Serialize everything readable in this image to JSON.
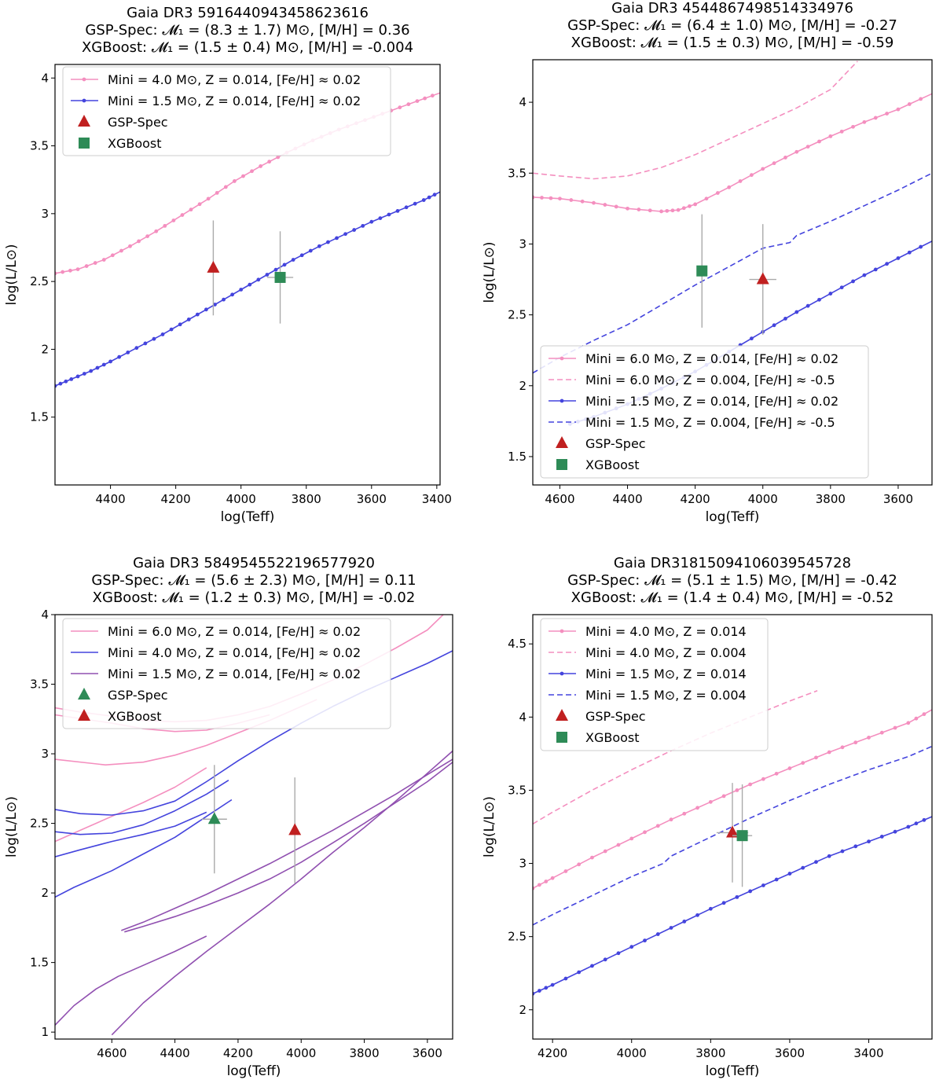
{
  "chart_data": [
    {
      "type": "line",
      "title": [
        "Gaia DR3 5916440943458623616",
        "GSP-Spec: 𝓜₁ = (8.3 ± 1.7) M⊙, [M/H] = 0.36",
        "XGBoost:   𝓜₁ = (1.5 ± 0.4) M⊙, [M/H] = -0.004"
      ],
      "xlabel": "log(Teff)",
      "ylabel": "log(L/L⊙)",
      "xlim": [
        4570,
        3390
      ],
      "ylim": [
        1.0,
        4.1
      ],
      "xticks": [
        4400,
        4200,
        4000,
        3800,
        3600,
        3400
      ],
      "yticks": [
        1.5,
        2.0,
        2.5,
        3.0,
        3.5,
        4.0
      ],
      "legend_location": "top-left",
      "series": [
        {
          "name": "Mini = 4.0 M⊙, Z = 0.014, [Fe/H] ≈ 0.02",
          "style": "solid",
          "color": "#f48fbf",
          "markers": true,
          "x": [
            4570,
            4500,
            4420,
            4340,
            4260,
            4180,
            4100,
            4020,
            3940,
            3860,
            3780,
            3700,
            3620,
            3540,
            3460,
            3390
          ],
          "y": [
            2.56,
            2.59,
            2.66,
            2.76,
            2.87,
            2.99,
            3.11,
            3.24,
            3.35,
            3.45,
            3.54,
            3.62,
            3.69,
            3.76,
            3.83,
            3.89
          ]
        },
        {
          "name": "Mini = 1.5 M⊙, Z = 0.014, [Fe/H] ≈ 0.02",
          "style": "solid",
          "color": "#4444dd",
          "markers": true,
          "x": [
            4570,
            4520,
            4460,
            4400,
            4320,
            4240,
            4160,
            4080,
            4000,
            3920,
            3840,
            3760,
            3680,
            3600,
            3520,
            3440,
            3390
          ],
          "y": [
            1.73,
            1.78,
            1.84,
            1.91,
            2.01,
            2.11,
            2.22,
            2.33,
            2.44,
            2.55,
            2.66,
            2.76,
            2.85,
            2.94,
            3.02,
            3.1,
            3.16
          ]
        }
      ],
      "points": [
        {
          "name": "GSP-Spec",
          "marker": "triangle",
          "color": "#c02020",
          "x": 4085,
          "y": 2.6,
          "xerr": 0,
          "yerr": 0.35
        },
        {
          "name": "XGBoost",
          "marker": "square",
          "color": "#2e8b57",
          "x": 3880,
          "y": 2.53,
          "xerr": 40,
          "yerr": 0.34
        }
      ]
    },
    {
      "type": "line",
      "title": [
        "Gaia DR3 4544867498514334976",
        "GSP-Spec: 𝓜₁ = (6.4 ± 1.0) M⊙, [M/H] = -0.27",
        "XGBoost: 𝓜₁ = (1.5 ± 0.3) M⊙, [M/H] = -0.59"
      ],
      "xlabel": "log(Teff)",
      "ylabel": "log(L/L⊙)",
      "xlim": [
        4680,
        3500
      ],
      "ylim": [
        1.3,
        4.3
      ],
      "xticks": [
        4600,
        4400,
        4200,
        4000,
        3800,
        3600
      ],
      "yticks": [
        1.5,
        2.0,
        2.5,
        3.0,
        3.5,
        4.0
      ],
      "legend_location": "bottom-left",
      "series": [
        {
          "name": "Mini = 6.0 M⊙, Z = 0.014, [Fe/H] ≈ 0.02",
          "style": "solid",
          "color": "#f48fbf",
          "markers": true,
          "x": [
            4680,
            4600,
            4500,
            4400,
            4300,
            4250,
            4200,
            4100,
            4000,
            3900,
            3800,
            3700,
            3600,
            3500
          ],
          "y": [
            3.33,
            3.32,
            3.29,
            3.25,
            3.23,
            3.24,
            3.28,
            3.4,
            3.53,
            3.65,
            3.76,
            3.86,
            3.95,
            4.06
          ]
        },
        {
          "name": "Mini = 6.0 M⊙, Z = 0.004, [Fe/H] ≈ -0.5",
          "style": "dashed",
          "color": "#f48fbf",
          "markers": false,
          "x": [
            4680,
            4600,
            4500,
            4400,
            4300,
            4200,
            4100,
            4000,
            3900,
            3800,
            3720
          ],
          "y": [
            3.5,
            3.48,
            3.46,
            3.48,
            3.54,
            3.63,
            3.74,
            3.85,
            3.96,
            4.09,
            4.29
          ]
        },
        {
          "name": "Mini = 1.5 M⊙, Z = 0.014, [Fe/H] ≈ 0.02",
          "style": "solid",
          "color": "#4444dd",
          "markers": true,
          "x": [
            4570,
            4500,
            4400,
            4300,
            4200,
            4100,
            4000,
            3900,
            3800,
            3700,
            3600,
            3500
          ],
          "y": [
            1.73,
            1.78,
            1.87,
            1.98,
            2.1,
            2.24,
            2.38,
            2.52,
            2.65,
            2.78,
            2.9,
            3.02
          ]
        },
        {
          "name": "Mini = 1.5 M⊙, Z = 0.004, [Fe/H] ≈ -0.5",
          "style": "dashed",
          "color": "#4444dd",
          "markers": false,
          "x": [
            4680,
            4600,
            4500,
            4400,
            4300,
            4200,
            4100,
            4000,
            3920,
            3900,
            3800,
            3700,
            3600,
            3500
          ],
          "y": [
            2.09,
            2.2,
            2.32,
            2.43,
            2.57,
            2.71,
            2.84,
            2.97,
            3.01,
            3.06,
            3.16,
            3.27,
            3.38,
            3.5
          ]
        }
      ],
      "points": [
        {
          "name": "GSP-Spec",
          "marker": "triangle",
          "color": "#c02020",
          "x": 4000,
          "y": 2.75,
          "xerr": 40,
          "yerr": 0.39
        },
        {
          "name": "XGBoost",
          "marker": "square",
          "color": "#2e8b57",
          "x": 4180,
          "y": 2.81,
          "xerr": 0,
          "yerr": 0.4
        }
      ]
    },
    {
      "type": "line",
      "title": [
        "Gaia DR3 5849545522196577920",
        "GSP-Spec: 𝓜₁ = (5.6 ± 2.3) M⊙, [M/H] = 0.11",
        "XGBoost: 𝓜₁ = (1.2 ± 0.3) M⊙, [M/H] = -0.02"
      ],
      "xlabel": "log(Teff)",
      "ylabel": "log(L/L⊙)",
      "xlim": [
        4780,
        3520
      ],
      "ylim": [
        0.95,
        4.0
      ],
      "xticks": [
        4600,
        4400,
        4200,
        4000,
        3800,
        3600
      ],
      "yticks": [
        1.0,
        1.5,
        2.0,
        2.5,
        3.0,
        3.5,
        4.0
      ],
      "legend_location": "top-left",
      "series": [
        {
          "name": "Mini = 6.0 M⊙, Z = 0.014, [Fe/H] ≈ 0.02",
          "style": "solid",
          "color": "#f48fbf",
          "markers": false,
          "x": [
            4780,
            4700,
            4600,
            4500,
            4400,
            4300,
            4200,
            4100,
            4000,
            3900,
            3800,
            3700,
            3600,
            3550
          ],
          "y": [
            3.33,
            3.3,
            3.27,
            3.24,
            3.23,
            3.24,
            3.28,
            3.34,
            3.43,
            3.53,
            3.64,
            3.76,
            3.89,
            4.0
          ]
        },
        {
          "name": "Mini = 4.0 M⊙, Z = 0.014, [Fe/H] ≈ 0.02",
          "style": "solid",
          "color": "#4444dd",
          "markers": false,
          "x": [
            4780,
            4700,
            4600,
            4500,
            4400,
            4300,
            4200,
            4100,
            4000,
            3900,
            3800,
            3700,
            3600,
            3520
          ],
          "y": [
            2.6,
            2.57,
            2.56,
            2.59,
            2.66,
            2.8,
            2.95,
            3.09,
            3.22,
            3.34,
            3.45,
            3.55,
            3.65,
            3.74
          ]
        },
        {
          "name": "Mini = 1.5 M⊙, Z = 0.014, [Fe/H] ≈ 0.02",
          "style": "solid",
          "color": "#9050b0",
          "markers": false,
          "x": [
            4570,
            4500,
            4400,
            4300,
            4200,
            4100,
            4000,
            3900,
            3800,
            3700,
            3600,
            3520
          ],
          "y": [
            1.73,
            1.79,
            1.89,
            1.99,
            2.1,
            2.21,
            2.33,
            2.45,
            2.58,
            2.71,
            2.85,
            2.96
          ]
        }
      ],
      "extra_tracks": [
        {
          "color": "#f48fbf",
          "x": [
            4780,
            4620,
            4500,
            4400,
            4300,
            4200,
            4100,
            4000,
            3950
          ],
          "y": [
            2.96,
            2.92,
            2.94,
            2.99,
            3.06,
            3.15,
            3.24,
            3.34,
            3.39
          ]
        },
        {
          "color": "#f48fbf",
          "x": [
            4780,
            4700,
            4600,
            4500,
            4400,
            4300
          ],
          "y": [
            2.37,
            2.45,
            2.55,
            2.65,
            2.76,
            2.9
          ]
        },
        {
          "color": "#f48fbf",
          "x": [
            4780,
            4600,
            4500,
            4400,
            4300,
            4200,
            4100
          ],
          "y": [
            3.28,
            3.22,
            3.18,
            3.16,
            3.17,
            3.22,
            3.28
          ]
        },
        {
          "color": "#4444dd",
          "x": [
            4780,
            4700,
            4600,
            4500,
            4400,
            4300,
            4230
          ],
          "y": [
            2.44,
            2.42,
            2.43,
            2.49,
            2.59,
            2.71,
            2.81
          ]
        },
        {
          "color": "#4444dd",
          "x": [
            4780,
            4700,
            4600,
            4500,
            4400,
            4300
          ],
          "y": [
            2.26,
            2.31,
            2.37,
            2.42,
            2.48,
            2.58
          ]
        },
        {
          "color": "#4444dd",
          "x": [
            4780,
            4720,
            4600,
            4500,
            4400,
            4300,
            4220
          ],
          "y": [
            1.97,
            2.04,
            2.16,
            2.28,
            2.4,
            2.55,
            2.67
          ]
        },
        {
          "color": "#9050b0",
          "x": [
            4560,
            4500,
            4400,
            4300,
            4200,
            4100,
            4000,
            3900,
            3800,
            3700,
            3600,
            3520
          ],
          "y": [
            1.72,
            1.76,
            1.83,
            1.91,
            2.0,
            2.1,
            2.22,
            2.36,
            2.5,
            2.65,
            2.8,
            2.94
          ]
        },
        {
          "color": "#9050b0",
          "x": [
            4600,
            4500,
            4400,
            4300,
            4200,
            4100,
            4000,
            3900,
            3800,
            3700,
            3600,
            3520
          ],
          "y": [
            0.98,
            1.21,
            1.4,
            1.58,
            1.75,
            1.92,
            2.1,
            2.29,
            2.47,
            2.66,
            2.86,
            3.02
          ]
        },
        {
          "color": "#9050b0",
          "x": [
            4780,
            4720,
            4650,
            4580,
            4500,
            4400,
            4300
          ],
          "y": [
            1.05,
            1.19,
            1.31,
            1.4,
            1.48,
            1.58,
            1.69
          ]
        }
      ],
      "points": [
        {
          "name": "GSP-Spec",
          "marker": "triangle",
          "color": "#2e8b57",
          "x": 4275,
          "y": 2.53,
          "xerr": 40,
          "yerr": 0.39
        },
        {
          "name": "XGBoost",
          "marker": "triangle",
          "color": "#c02020",
          "x": 4020,
          "y": 2.45,
          "xerr": 0,
          "yerr": 0.38
        }
      ]
    },
    {
      "type": "line",
      "title": [
        "Gaia DR31815094106039545728",
        "GSP-Spec: 𝓜₁ = (5.1 ± 1.5) M⊙, [M/H] = -0.42",
        "XGBoost: 𝓜₁ = (1.4 ± 0.4) M⊙, [M/H] = -0.52"
      ],
      "xlabel": "log(Teff)",
      "ylabel": "log(L/L⊙)",
      "xlim": [
        4250,
        3240
      ],
      "ylim": [
        1.8,
        4.7
      ],
      "xticks": [
        4200,
        4000,
        3800,
        3600,
        3400
      ],
      "yticks": [
        2.0,
        2.5,
        3.0,
        3.5,
        4.0,
        4.5
      ],
      "legend_location": "top-left",
      "series": [
        {
          "name": "Mini = 4.0 M⊙, Z = 0.014",
          "style": "solid",
          "color": "#f48fbf",
          "markers": true,
          "x": [
            4250,
            4200,
            4100,
            4000,
            3900,
            3800,
            3700,
            3600,
            3500,
            3400,
            3300,
            3240
          ],
          "y": [
            2.83,
            2.9,
            3.04,
            3.17,
            3.3,
            3.42,
            3.54,
            3.65,
            3.76,
            3.86,
            3.96,
            4.05
          ]
        },
        {
          "name": "Mini = 4.0 M⊙, Z = 0.004",
          "style": "dashed",
          "color": "#f48fbf",
          "markers": false,
          "x": [
            4250,
            4200,
            4100,
            4000,
            3900,
            3800,
            3700,
            3600,
            3530
          ],
          "y": [
            3.27,
            3.35,
            3.5,
            3.64,
            3.77,
            3.89,
            4.0,
            4.11,
            4.18
          ]
        },
        {
          "name": "Mini = 1.5 M⊙, Z = 0.014",
          "style": "solid",
          "color": "#4444dd",
          "markers": true,
          "x": [
            4250,
            4200,
            4100,
            4000,
            3900,
            3800,
            3700,
            3600,
            3500,
            3400,
            3300,
            3240
          ],
          "y": [
            2.11,
            2.17,
            2.3,
            2.43,
            2.56,
            2.69,
            2.81,
            2.93,
            3.05,
            3.15,
            3.25,
            3.32
          ]
        },
        {
          "name": "Mini = 1.5 M⊙, Z = 0.004",
          "style": "dashed",
          "color": "#4444dd",
          "markers": false,
          "x": [
            4250,
            4200,
            4100,
            4000,
            3920,
            3900,
            3800,
            3700,
            3600,
            3500,
            3400,
            3300,
            3240
          ],
          "y": [
            2.58,
            2.65,
            2.78,
            2.91,
            3.0,
            3.05,
            3.18,
            3.31,
            3.43,
            3.54,
            3.64,
            3.73,
            3.8
          ]
        }
      ],
      "points": [
        {
          "name": "GSP-Spec",
          "marker": "triangle",
          "color": "#c02020",
          "x": 3745,
          "y": 3.21,
          "xerr": 40,
          "yerr": 0.34
        },
        {
          "name": "XGBoost",
          "marker": "square",
          "color": "#2e8b57",
          "x": 3720,
          "y": 3.19,
          "xerr": 25,
          "yerr": 0.35
        }
      ]
    }
  ]
}
